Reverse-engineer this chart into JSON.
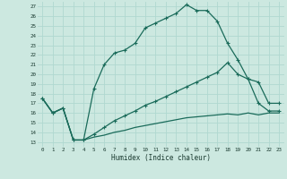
{
  "xlabel": "Humidex (Indice chaleur)",
  "bg_color": "#cce8e0",
  "grid_color": "#b0d8d0",
  "line_color": "#1a6b5a",
  "xlim": [
    -0.5,
    23.5
  ],
  "ylim": [
    12.5,
    27.5
  ],
  "xticks": [
    0,
    1,
    2,
    3,
    4,
    5,
    6,
    7,
    8,
    9,
    10,
    11,
    12,
    13,
    14,
    15,
    16,
    17,
    18,
    19,
    20,
    21,
    22,
    23
  ],
  "yticks": [
    13,
    14,
    15,
    16,
    17,
    18,
    19,
    20,
    21,
    22,
    23,
    24,
    25,
    26,
    27
  ],
  "line1_x": [
    0,
    1,
    2,
    3,
    4,
    5,
    6,
    7,
    8,
    9,
    10,
    11,
    12,
    13,
    14,
    15,
    16,
    17,
    18,
    19,
    20,
    21,
    22,
    23
  ],
  "line1_y": [
    17.5,
    16.0,
    16.5,
    13.2,
    13.2,
    18.5,
    21.0,
    22.2,
    22.5,
    23.2,
    24.8,
    25.3,
    25.8,
    26.3,
    27.2,
    26.6,
    26.6,
    25.5,
    23.2,
    21.5,
    19.5,
    17.0,
    16.2,
    16.2
  ],
  "line2_x": [
    0,
    1,
    2,
    3,
    4,
    5,
    6,
    7,
    8,
    9,
    10,
    11,
    12,
    13,
    14,
    15,
    16,
    17,
    18,
    19,
    20,
    21,
    22,
    23
  ],
  "line2_y": [
    17.5,
    16.0,
    16.5,
    13.2,
    13.2,
    13.8,
    14.5,
    15.2,
    15.7,
    16.2,
    16.8,
    17.2,
    17.7,
    18.2,
    18.7,
    19.2,
    19.7,
    20.2,
    21.2,
    20.0,
    19.5,
    19.2,
    17.0,
    17.0
  ],
  "line3_x": [
    0,
    1,
    2,
    3,
    4,
    5,
    6,
    7,
    8,
    9,
    10,
    11,
    12,
    13,
    14,
    15,
    16,
    17,
    18,
    19,
    20,
    21,
    22,
    23
  ],
  "line3_y": [
    17.5,
    16.0,
    16.5,
    13.2,
    13.2,
    13.5,
    13.7,
    14.0,
    14.2,
    14.5,
    14.7,
    14.9,
    15.1,
    15.3,
    15.5,
    15.6,
    15.7,
    15.8,
    15.9,
    15.8,
    16.0,
    15.8,
    16.0,
    16.0
  ]
}
